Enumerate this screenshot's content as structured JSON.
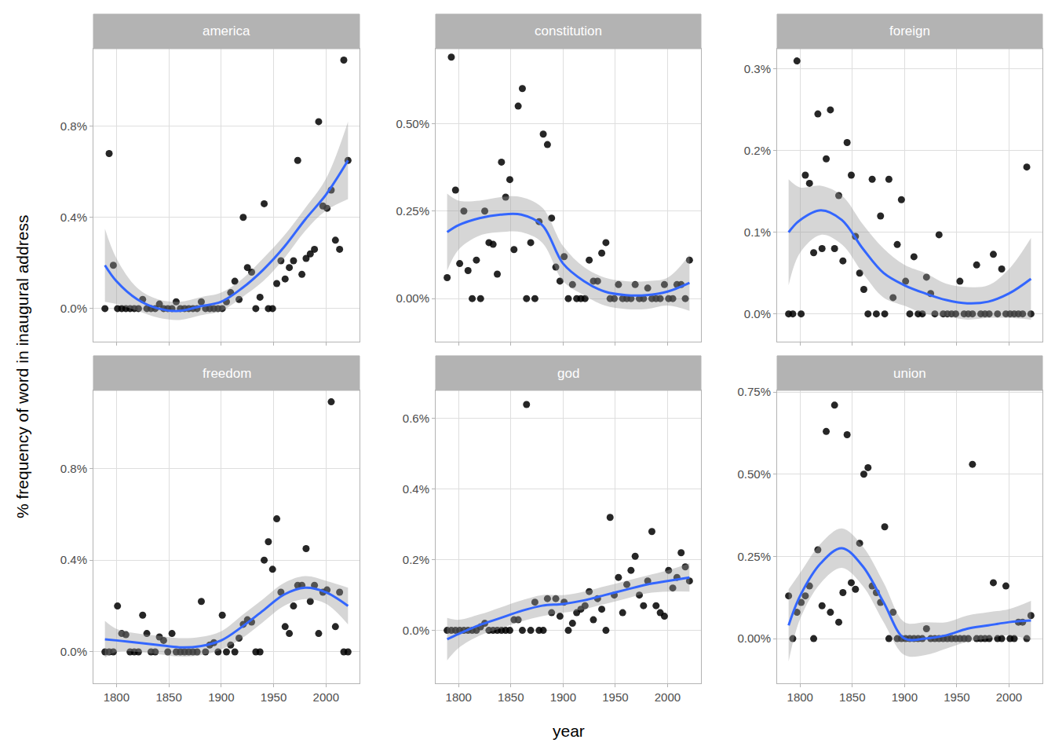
{
  "chart_data": {
    "type": "scatter",
    "xlabel": "year",
    "ylabel": "% frequency of word in inaugural address",
    "grid": true,
    "xlim": [
      1778,
      2032
    ],
    "xticks": [
      1800,
      1850,
      1900,
      1950,
      2000
    ],
    "x": [
      1789,
      1793,
      1797,
      1801,
      1805,
      1809,
      1813,
      1817,
      1821,
      1825,
      1829,
      1833,
      1837,
      1841,
      1845,
      1849,
      1853,
      1857,
      1861,
      1865,
      1869,
      1873,
      1877,
      1881,
      1885,
      1889,
      1893,
      1897,
      1901,
      1905,
      1909,
      1913,
      1917,
      1921,
      1925,
      1929,
      1933,
      1937,
      1941,
      1945,
      1949,
      1953,
      1957,
      1961,
      1965,
      1969,
      1973,
      1977,
      1981,
      1985,
      1989,
      1993,
      1997,
      2001,
      2005,
      2009,
      2013,
      2017,
      2021
    ],
    "panels": [
      {
        "title": "america",
        "ylim": [
          -0.145,
          1.14
        ],
        "yticks": [
          {
            "value": 0,
            "label": "0.0%"
          },
          {
            "value": 0.4,
            "label": "0.4%"
          },
          {
            "value": 0.8,
            "label": "0.8%"
          }
        ],
        "series": [
          {
            "type": "scatter",
            "color": "#000000",
            "values": [
              0,
              0.68,
              0.19,
              0,
              0,
              0,
              0,
              0,
              0,
              0.04,
              0,
              0,
              0,
              0.02,
              0,
              0,
              0,
              0.03,
              0,
              0,
              0,
              0,
              0,
              0.03,
              0,
              0,
              0,
              0,
              0,
              0.03,
              0.07,
              0.12,
              0.04,
              0.4,
              0.18,
              0.16,
              0,
              0.05,
              0.46,
              0,
              0,
              0.11,
              0.21,
              0.13,
              0.18,
              0.21,
              0.65,
              0.15,
              0.22,
              0.24,
              0.26,
              0.82,
              0.45,
              0.44,
              0.52,
              0.3,
              0.26,
              1.09,
              0.65
            ]
          },
          {
            "type": "line",
            "color": "#3366FF",
            "x": [
              1789,
              1800,
              1820,
              1840,
              1860,
              1880,
              1900,
              1920,
              1940,
              1960,
              1980,
              2000,
              2021
            ],
            "values": [
              0.19,
              0.12,
              0.04,
              0.0,
              -0.01,
              0.01,
              0.03,
              0.09,
              0.17,
              0.27,
              0.39,
              0.5,
              0.65
            ],
            "lower": [
              0.03,
              0.02,
              -0.01,
              -0.04,
              -0.05,
              -0.03,
              -0.01,
              0.05,
              0.12,
              0.22,
              0.34,
              0.43,
              0.48
            ],
            "upper": [
              0.35,
              0.22,
              0.09,
              0.04,
              0.03,
              0.05,
              0.07,
              0.13,
              0.22,
              0.32,
              0.44,
              0.57,
              0.82
            ]
          }
        ]
      },
      {
        "title": "constitution",
        "ylim": [
          -0.123,
          0.714
        ],
        "yticks": [
          {
            "value": 0,
            "label": "0.00%"
          },
          {
            "value": 0.25,
            "label": "0.25%"
          },
          {
            "value": 0.5,
            "label": "0.50%"
          }
        ],
        "series": [
          {
            "type": "scatter",
            "color": "#000000",
            "values": [
              0.06,
              0.69,
              0.31,
              0.1,
              0.25,
              0.08,
              0,
              0.11,
              0,
              0.25,
              0.16,
              0.155,
              0.07,
              0.39,
              0.29,
              0.34,
              0.14,
              0.55,
              0.6,
              0,
              0.16,
              0,
              0.22,
              0.47,
              0.44,
              0.23,
              0.09,
              0.05,
              0.12,
              0,
              0.04,
              0,
              0,
              0,
              0.11,
              0.05,
              0.05,
              0.13,
              0.16,
              0,
              0,
              0.04,
              0,
              0,
              0,
              0.04,
              0,
              0,
              0.03,
              0,
              0,
              0,
              0.04,
              0,
              0,
              0.04,
              0.04,
              0,
              0.11
            ]
          },
          {
            "type": "line",
            "color": "#3366FF",
            "x": [
              1789,
              1800,
              1820,
              1840,
              1860,
              1880,
              1900,
              1920,
              1940,
              1960,
              1980,
              2000,
              2021
            ],
            "values": [
              0.19,
              0.21,
              0.23,
              0.24,
              0.24,
              0.21,
              0.1,
              0.05,
              0.02,
              0.01,
              0.01,
              0.02,
              0.045
            ],
            "lower": [
              0.08,
              0.14,
              0.18,
              0.19,
              0.19,
              0.16,
              0.05,
              0.01,
              -0.02,
              -0.03,
              -0.03,
              -0.02,
              -0.035
            ],
            "upper": [
              0.3,
              0.28,
              0.28,
              0.29,
              0.29,
              0.26,
              0.15,
              0.09,
              0.06,
              0.05,
              0.05,
              0.06,
              0.125
            ]
          }
        ]
      },
      {
        "title": "foreign",
        "ylim": [
          -0.034,
          0.325
        ],
        "yticks": [
          {
            "value": 0,
            "label": "0.0%"
          },
          {
            "value": 0.1,
            "label": "0.1%"
          },
          {
            "value": 0.2,
            "label": "0.2%"
          },
          {
            "value": 0.3,
            "label": "0.3%"
          }
        ],
        "series": [
          {
            "type": "scatter",
            "color": "#000000",
            "values": [
              0,
              0,
              0.31,
              0,
              0.17,
              0.16,
              0.075,
              0.245,
              0.08,
              0.19,
              0.25,
              0.08,
              0.145,
              0.065,
              0.21,
              0.17,
              0.095,
              0.05,
              0.03,
              0,
              0.165,
              0,
              0.12,
              0,
              0.165,
              0.02,
              0.085,
              0.14,
              0.04,
              0,
              0.07,
              0,
              0,
              0.045,
              0.025,
              0,
              0.097,
              0,
              0,
              0,
              0,
              0.04,
              0,
              0,
              0,
              0.06,
              0,
              0,
              0,
              0.073,
              0,
              0.055,
              0,
              0,
              0,
              0,
              0,
              0.18,
              0
            ]
          },
          {
            "type": "line",
            "color": "#3366FF",
            "x": [
              1789,
              1800,
              1820,
              1840,
              1860,
              1880,
              1900,
              1920,
              1940,
              1960,
              1980,
              2000,
              2021
            ],
            "values": [
              0.1,
              0.115,
              0.127,
              0.115,
              0.08,
              0.05,
              0.035,
              0.025,
              0.017,
              0.013,
              0.015,
              0.025,
              0.043
            ],
            "lower": [
              0.035,
              0.075,
              0.097,
              0.085,
              0.05,
              0.02,
              0.01,
              0.0,
              -0.003,
              -0.007,
              -0.005,
              -0.005,
              -0.007
            ],
            "upper": [
              0.165,
              0.155,
              0.157,
              0.145,
              0.11,
              0.08,
              0.06,
              0.05,
              0.037,
              0.033,
              0.035,
              0.055,
              0.093
            ]
          }
        ]
      },
      {
        "title": "freedom",
        "ylim": [
          -0.137,
          1.14
        ],
        "yticks": [
          {
            "value": 0,
            "label": "0.0%"
          },
          {
            "value": 0.4,
            "label": "0.4%"
          },
          {
            "value": 0.8,
            "label": "0.8%"
          }
        ],
        "series": [
          {
            "type": "scatter",
            "color": "#000000",
            "values": [
              0,
              0,
              0,
              0.2,
              0.08,
              0.075,
              0,
              0,
              0,
              0.16,
              0.08,
              0,
              0,
              0.065,
              0.05,
              0,
              0.08,
              0,
              0,
              0,
              0,
              0,
              0,
              0.22,
              0,
              0.03,
              0.04,
              0,
              0.16,
              0,
              0.03,
              0,
              0.06,
              0.12,
              0.14,
              0.13,
              0,
              0,
              0.4,
              0.48,
              0.36,
              0.58,
              0.26,
              0.11,
              0.08,
              0.2,
              0.29,
              0.29,
              0.45,
              0.22,
              0.29,
              0.08,
              0.26,
              0.27,
              1.09,
              0.11,
              0.26,
              0,
              0
            ]
          },
          {
            "type": "line",
            "color": "#3366FF",
            "x": [
              1789,
              1800,
              1820,
              1840,
              1860,
              1880,
              1900,
              1920,
              1940,
              1960,
              1980,
              2000,
              2021
            ],
            "values": [
              0.055,
              0.05,
              0.04,
              0.03,
              0.02,
              0.025,
              0.05,
              0.11,
              0.18,
              0.25,
              0.28,
              0.26,
              0.2
            ],
            "lower": [
              -0.025,
              0.0,
              0.0,
              -0.01,
              -0.02,
              -0.015,
              0.01,
              0.06,
              0.13,
              0.2,
              0.23,
              0.21,
              0.12
            ],
            "upper": [
              0.135,
              0.1,
              0.08,
              0.07,
              0.06,
              0.065,
              0.09,
              0.16,
              0.23,
              0.3,
              0.33,
              0.31,
              0.28
            ]
          }
        ]
      },
      {
        "title": "god",
        "ylim": [
          -0.15,
          0.68
        ],
        "yticks": [
          {
            "value": 0,
            "label": "0.0%"
          },
          {
            "value": 0.2,
            "label": "0.2%"
          },
          {
            "value": 0.4,
            "label": "0.4%"
          },
          {
            "value": 0.6,
            "label": "0.6%"
          }
        ],
        "series": [
          {
            "type": "scatter",
            "color": "#000000",
            "values": [
              0,
              0,
              0,
              0,
              0,
              0,
              0,
              0,
              0.01,
              0.02,
              0,
              0,
              0,
              0,
              0,
              0,
              0.03,
              0.03,
              0,
              0.64,
              0,
              0.08,
              0,
              0,
              0.09,
              0.05,
              0.09,
              0.04,
              0.08,
              0,
              0.02,
              0.05,
              0.06,
              0.07,
              0.11,
              0.03,
              0.09,
              0.06,
              0,
              0.32,
              0.1,
              0.15,
              0.05,
              0.13,
              0.17,
              0.21,
              0.1,
              0.07,
              0.14,
              0.28,
              0.07,
              0.05,
              0.04,
              0.17,
              0.12,
              0.15,
              0.22,
              0.18,
              0.14
            ]
          },
          {
            "type": "line",
            "color": "#3366FF",
            "x": [
              1789,
              1800,
              1820,
              1840,
              1860,
              1880,
              1900,
              1920,
              1940,
              1960,
              1980,
              2000,
              2021
            ],
            "values": [
              -0.025,
              -0.01,
              0.015,
              0.035,
              0.055,
              0.07,
              0.075,
              0.085,
              0.1,
              0.115,
              0.13,
              0.14,
              0.15
            ],
            "lower": [
              -0.085,
              -0.05,
              -0.015,
              0.005,
              0.025,
              0.04,
              0.05,
              0.06,
              0.075,
              0.09,
              0.105,
              0.11,
              0.11
            ],
            "upper": [
              0.035,
              0.03,
              0.045,
              0.065,
              0.085,
              0.1,
              0.1,
              0.11,
              0.125,
              0.14,
              0.155,
              0.17,
              0.19
            ]
          }
        ]
      },
      {
        "title": "union",
        "ylim": [
          -0.136,
          0.755
        ],
        "yticks": [
          {
            "value": 0,
            "label": "0.00%"
          },
          {
            "value": 0.25,
            "label": "0.25%"
          },
          {
            "value": 0.5,
            "label": "0.50%"
          },
          {
            "value": 0.75,
            "label": "0.75%"
          }
        ],
        "series": [
          {
            "type": "scatter",
            "color": "#000000",
            "values": [
              0.13,
              0,
              0.08,
              0.11,
              0.13,
              0.16,
              0,
              0.27,
              0.1,
              0.63,
              0.08,
              0.71,
              0.05,
              0.14,
              0.62,
              0.17,
              0.15,
              0.29,
              0.5,
              0.52,
              0.16,
              0.14,
              0.11,
              0.34,
              0,
              0.08,
              0,
              0,
              0,
              0,
              0,
              0,
              0,
              0.03,
              0,
              0,
              0,
              0,
              0,
              0,
              0,
              0,
              0,
              0,
              0.53,
              0,
              0,
              0,
              0,
              0.17,
              0,
              0,
              0.16,
              0,
              0,
              0.05,
              0.05,
              0,
              0.07
            ]
          },
          {
            "type": "line",
            "color": "#3366FF",
            "x": [
              1789,
              1800,
              1820,
              1840,
              1860,
              1880,
              1900,
              1920,
              1940,
              1960,
              1980,
              2000,
              2021
            ],
            "values": [
              0.04,
              0.13,
              0.23,
              0.275,
              0.22,
              0.11,
              0.0,
              0.0,
              0.01,
              0.03,
              0.04,
              0.05,
              0.055
            ],
            "lower": [
              -0.07,
              0.06,
              0.17,
              0.215,
              0.16,
              0.05,
              -0.05,
              -0.05,
              -0.03,
              -0.01,
              0.0,
              0.01,
              -0.005
            ],
            "upper": [
              0.15,
              0.2,
              0.29,
              0.335,
              0.28,
              0.17,
              0.05,
              0.05,
              0.05,
              0.07,
              0.08,
              0.09,
              0.115
            ]
          }
        ]
      }
    ]
  }
}
